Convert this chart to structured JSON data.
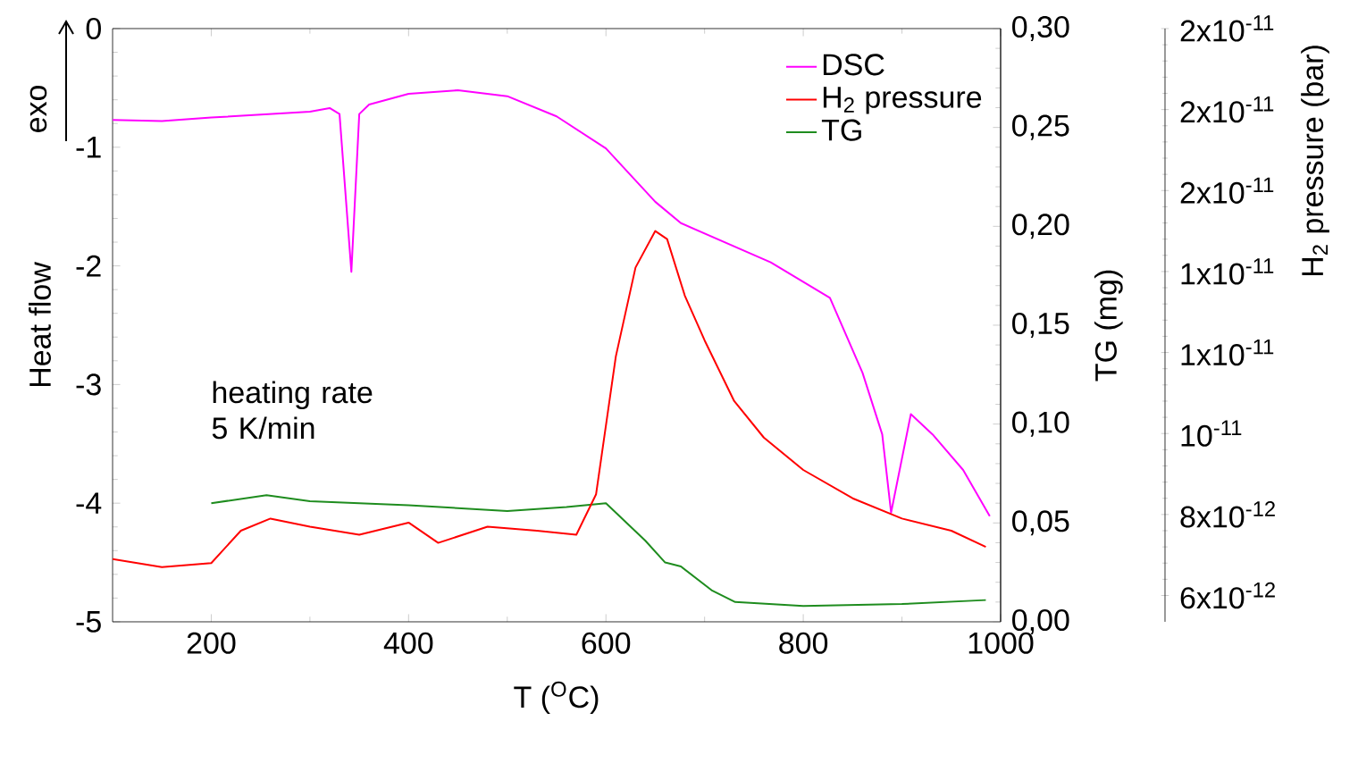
{
  "chart_data": {
    "type": "line",
    "xlabel": "T ($^{O}$C)",
    "ylabel": "Heat flow",
    "y2label": "TG (mg)",
    "y3label": "H$_{2}$ pressure (bar)",
    "xlim": [
      100,
      1000
    ],
    "xticks": [
      200,
      400,
      600,
      800,
      1000
    ],
    "ylim": [
      -5,
      0
    ],
    "yticks": [
      -5,
      -4,
      -3,
      -2,
      -1,
      0
    ],
    "y2lim": [
      0,
      0.3
    ],
    "y2ticks": [
      {
        "value": 0,
        "label": "0,00"
      },
      {
        "value": 0.05,
        "label": "0,05"
      },
      {
        "value": 0.1,
        "label": "0,10"
      },
      {
        "value": 0.15,
        "label": "0,15"
      },
      {
        "value": 0.2,
        "label": "0,20"
      },
      {
        "value": 0.25,
        "label": "0,25"
      },
      {
        "value": 0.3,
        "label": "0,30"
      }
    ],
    "y3lim": [
      5.35e-12,
      2e-11
    ],
    "y3ticks": [
      {
        "value": 6e-12,
        "label": "6x10$^{-12}$"
      },
      {
        "value": 8e-12,
        "label": "8x10$^{-12}$"
      },
      {
        "value": 1e-11,
        "label": "10$^{-11}$"
      },
      {
        "value": 1.2e-11,
        "label": "1x10$^{-11}$"
      },
      {
        "value": 1.4e-11,
        "label": "1x10$^{-11}$"
      },
      {
        "value": 1.6e-11,
        "label": "2x10$^{-11}$"
      },
      {
        "value": 1.8e-11,
        "label": "2x10$^{-11}$"
      },
      {
        "value": 2e-11,
        "label": "2x10$^{-11}$"
      }
    ],
    "legend": "top right",
    "marker": "none",
    "line_style": "solid",
    "series": [
      {
        "name": "DSC",
        "color": "#ff00ff",
        "axis": "y",
        "x": [
          100,
          150,
          200,
          300,
          320,
          330,
          342,
          350,
          360,
          400,
          450,
          500,
          550,
          600,
          650,
          676,
          767,
          827,
          860,
          880,
          889,
          909,
          931,
          962,
          989
        ],
        "values": [
          -0.77,
          -0.78,
          -0.75,
          -0.7,
          -0.67,
          -0.72,
          -2.05,
          -0.72,
          -0.64,
          -0.55,
          -0.52,
          -0.57,
          -0.74,
          -1.01,
          -1.46,
          -1.64,
          -1.97,
          -2.27,
          -2.9,
          -3.42,
          -4.08,
          -3.25,
          -3.42,
          -3.72,
          -4.11
        ]
      },
      {
        "name": "H$_{2}$ pressure",
        "color": "#ff0000",
        "axis": "y3",
        "x": [
          100,
          150,
          200,
          230,
          260,
          300,
          350,
          400,
          430,
          480,
          530,
          570,
          590,
          610,
          630,
          650,
          662,
          680,
          700,
          730,
          760,
          800,
          850,
          900,
          950,
          985
        ],
        "values": [
          6.9e-12,
          6.7e-12,
          6.8e-12,
          7.6e-12,
          7.9e-12,
          7.7e-12,
          7.5e-12,
          7.8e-12,
          7.3e-12,
          7.7e-12,
          7.6e-12,
          7.5e-12,
          8.5e-12,
          1.19e-11,
          1.41e-11,
          1.5e-11,
          1.48e-11,
          1.34e-11,
          1.23e-11,
          1.08e-11,
          9.9e-12,
          9.1e-12,
          8.4e-12,
          7.9e-12,
          7.6e-12,
          7.2e-12
        ]
      },
      {
        "name": "TG",
        "color": "#1e8c1e",
        "axis": "y2",
        "x": [
          200,
          256,
          300,
          400,
          500,
          560,
          600,
          640,
          660,
          676,
          707,
          731,
          800,
          900,
          985
        ],
        "values": [
          0.06,
          0.064,
          0.061,
          0.059,
          0.056,
          0.058,
          0.06,
          0.041,
          0.03,
          0.028,
          0.016,
          0.01,
          0.008,
          0.009,
          0.011
        ]
      }
    ],
    "annotations": [
      "exo",
      "heating rate 5 K/min"
    ]
  }
}
